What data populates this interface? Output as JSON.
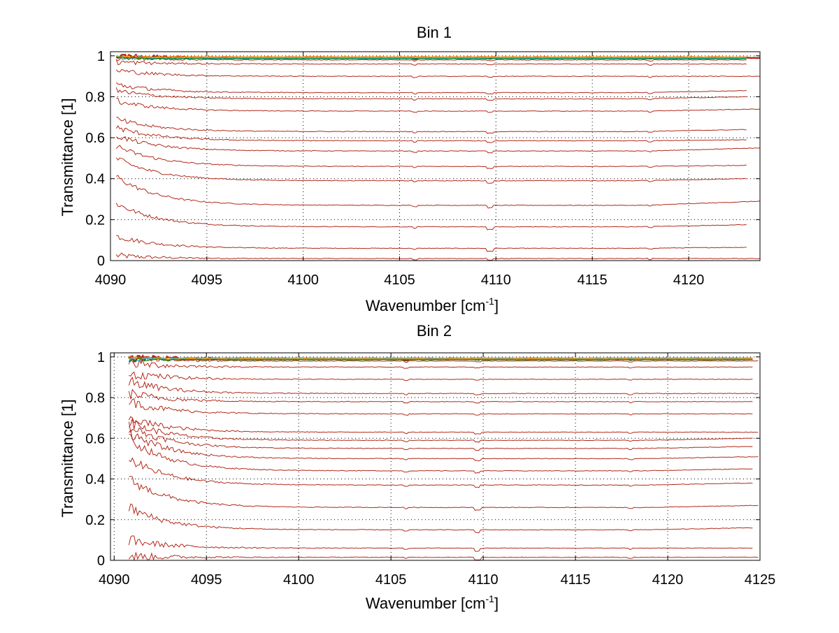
{
  "chart_data": [
    {
      "type": "line",
      "title": "Bin 1",
      "xlabel_main": "Wavenumber [cm",
      "xlabel_sup": "-1",
      "xlabel_end": "]",
      "ylabel": "Transmittance [1]",
      "xlim": [
        4090,
        4123.7
      ],
      "ylim": [
        0,
        1.02
      ],
      "x_ticks": [
        4090,
        4095,
        4100,
        4105,
        4110,
        4115,
        4120
      ],
      "x_tick_labels": [
        "4090",
        "4095",
        "4100",
        "4105",
        "4110",
        "4115",
        "4120"
      ],
      "y_ticks": [
        0,
        0.2,
        0.4,
        0.6,
        0.8,
        1
      ],
      "y_tick_labels": [
        "0",
        "0.2",
        "0.4",
        "0.6",
        "0.8",
        "1"
      ],
      "grid": true,
      "legend": "none",
      "colors": {
        "series": "#b22a1a",
        "top_series": [
          "#ff6a00",
          "#ffb000",
          "#00b4ff",
          "#008000"
        ]
      },
      "x_start": 4090.3,
      "x_end": 4123,
      "x_end_long": 4123.7,
      "series": [
        {
          "start": 0.025,
          "level": 0.01,
          "end": 0.01
        },
        {
          "start": 0.12,
          "level": 0.06,
          "end": 0.065
        },
        {
          "start": 0.28,
          "level": 0.165,
          "end": 0.175
        },
        {
          "start": 0.41,
          "level": 0.27,
          "end": 0.29
        },
        {
          "start": 0.5,
          "level": 0.39,
          "end": 0.4
        },
        {
          "start": 0.56,
          "level": 0.46,
          "end": 0.465
        },
        {
          "start": 0.61,
          "level": 0.535,
          "end": 0.55
        },
        {
          "start": 0.65,
          "level": 0.585,
          "end": 0.59
        },
        {
          "start": 0.69,
          "level": 0.63,
          "end": 0.64
        },
        {
          "start": 0.78,
          "level": 0.73,
          "end": 0.74
        },
        {
          "start": 0.83,
          "level": 0.79,
          "end": 0.8
        },
        {
          "start": 0.86,
          "level": 0.82,
          "end": 0.83
        },
        {
          "start": 0.93,
          "level": 0.9,
          "end": 0.9
        },
        {
          "start": 0.97,
          "level": 0.96,
          "end": 0.96
        },
        {
          "start": 0.99,
          "level": 0.98,
          "end": 0.98
        },
        {
          "start": 1.0,
          "level": 0.99,
          "end": 0.99
        }
      ]
    },
    {
      "type": "line",
      "title": "Bin 2",
      "xlabel_main": "Wavenumber [cm",
      "xlabel_sup": "-1",
      "xlabel_end": "]",
      "ylabel": "Transmittance [1]",
      "xlim": [
        4089.8,
        4125
      ],
      "ylim": [
        0,
        1.02
      ],
      "x_ticks": [
        4090,
        4095,
        4100,
        4105,
        4110,
        4115,
        4120,
        4125
      ],
      "x_tick_labels": [
        "4090",
        "4095",
        "4100",
        "4105",
        "4110",
        "4115",
        "4120",
        "4125"
      ],
      "y_ticks": [
        0,
        0.2,
        0.4,
        0.6,
        0.8,
        1
      ],
      "y_tick_labels": [
        "0",
        "0.2",
        "0.4",
        "0.6",
        "0.8",
        "1"
      ],
      "grid": true,
      "legend": "none",
      "colors": {
        "series": "#b22a1a",
        "top_series": [
          "#ff6a00",
          "#ffb000",
          "#00b4ff",
          "#008000"
        ]
      },
      "x_start": 4090.8,
      "x_end": 4124.6,
      "x_end_long": 4124.9,
      "series": [
        {
          "start": 0.02,
          "level": 0.015,
          "end": 0.015
        },
        {
          "start": 0.1,
          "level": 0.06,
          "end": 0.06
        },
        {
          "start": 0.26,
          "level": 0.15,
          "end": 0.16
        },
        {
          "start": 0.4,
          "level": 0.26,
          "end": 0.27
        },
        {
          "start": 0.5,
          "level": 0.37,
          "end": 0.38
        },
        {
          "start": 0.6,
          "level": 0.44,
          "end": 0.45
        },
        {
          "start": 0.63,
          "level": 0.5,
          "end": 0.51
        },
        {
          "start": 0.66,
          "level": 0.55,
          "end": 0.56
        },
        {
          "start": 0.68,
          "level": 0.59,
          "end": 0.6
        },
        {
          "start": 0.7,
          "level": 0.63,
          "end": 0.63
        },
        {
          "start": 0.78,
          "level": 0.72,
          "end": 0.72
        },
        {
          "start": 0.82,
          "level": 0.78,
          "end": 0.78
        },
        {
          "start": 0.88,
          "level": 0.82,
          "end": 0.82
        },
        {
          "start": 0.92,
          "level": 0.89,
          "end": 0.89
        },
        {
          "start": 0.97,
          "level": 0.95,
          "end": 0.95
        },
        {
          "start": 0.99,
          "level": 0.98,
          "end": 0.98
        },
        {
          "start": 1.0,
          "level": 0.99,
          "end": 0.99
        }
      ]
    }
  ]
}
